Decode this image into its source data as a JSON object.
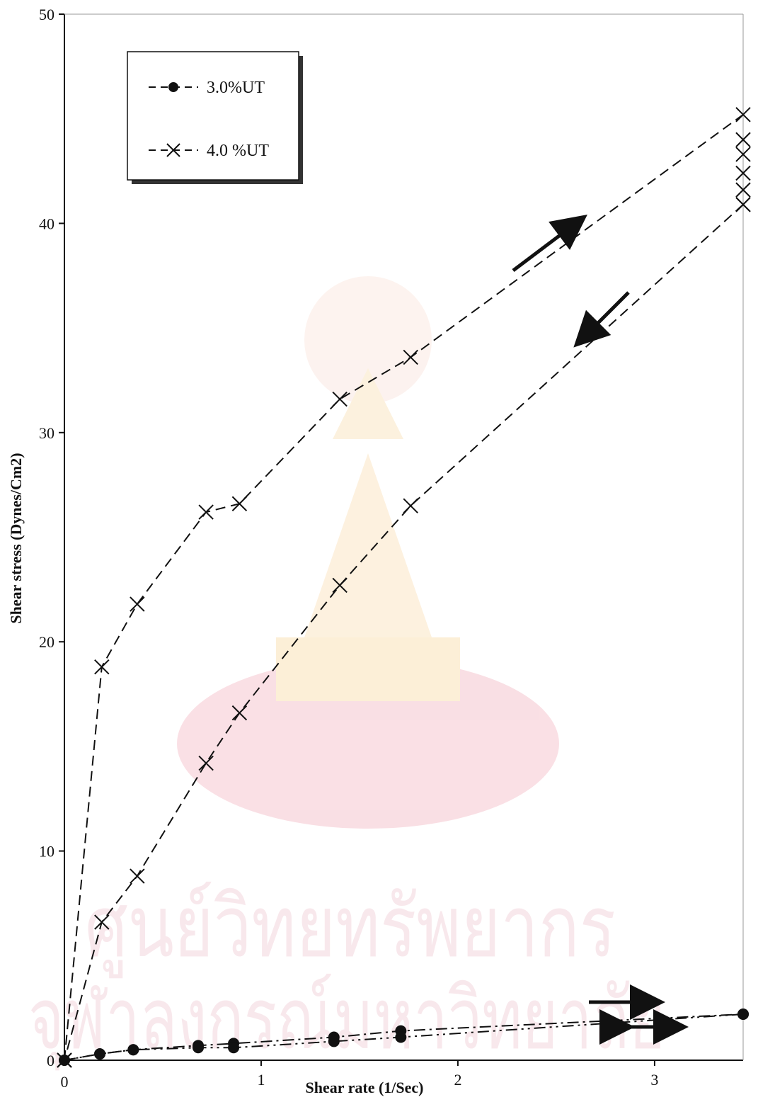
{
  "chart_data": {
    "type": "line",
    "title": "",
    "xlabel": "Shear rate (1/Sec)",
    "ylabel": "Shear stress (Dynes/Cm2)",
    "xlim": [
      0,
      3.45
    ],
    "ylim": [
      0,
      50
    ],
    "x_ticks": [
      0,
      1,
      2,
      3
    ],
    "y_ticks": [
      0,
      10,
      20,
      30,
      40,
      50
    ],
    "grid": false,
    "legend_position": "top-left",
    "series": [
      {
        "name": "3.0%UT",
        "marker": "circle",
        "color": "#111111",
        "up": {
          "x": [
            0,
            0.18,
            0.35,
            0.68,
            0.86,
            1.37,
            1.71,
            3.45
          ],
          "y": [
            0,
            0.3,
            0.5,
            0.7,
            0.8,
            1.1,
            1.4,
            2.2
          ]
        },
        "down": {
          "x": [
            3.45,
            1.71,
            1.37,
            0.86,
            0.68,
            0.35,
            0.18,
            0
          ],
          "y": [
            2.2,
            1.1,
            0.9,
            0.6,
            0.6,
            0.5,
            0.3,
            0
          ]
        }
      },
      {
        "name": "4.0 %UT",
        "marker": "x",
        "color": "#111111",
        "up": {
          "x": [
            0,
            0.19,
            0.37,
            0.72,
            0.89,
            1.4,
            1.76,
            3.45
          ],
          "y": [
            0,
            18.8,
            21.8,
            26.2,
            26.6,
            31.6,
            33.6,
            45.2
          ]
        },
        "down": {
          "x": [
            3.45,
            1.76,
            1.4,
            0.89,
            0.72,
            0.37,
            0.19,
            0
          ],
          "y": [
            40.9,
            26.5,
            22.7,
            16.6,
            14.2,
            8.8,
            6.6,
            0
          ]
        },
        "top_stack": {
          "x": [
            3.45,
            3.45,
            3.45,
            3.45,
            3.45
          ],
          "y": [
            44.0,
            43.3,
            42.4,
            41.6,
            40.9
          ]
        }
      }
    ],
    "annotations": [
      {
        "kind": "arrow-up-right",
        "meaning": "increasing shear rate"
      },
      {
        "kind": "arrow-down-left",
        "meaning": "decreasing shear rate"
      },
      {
        "kind": "arrow-right",
        "meaning": "increasing shear rate"
      },
      {
        "kind": "arrow-double",
        "meaning": "increasing and decreasing shear rate"
      }
    ],
    "watermark": {
      "text_line1": "ศูนย์วิทยทรัพยากร",
      "text_line2": "จุฬาลงกรณ์มหาวิทยาลัย"
    }
  }
}
